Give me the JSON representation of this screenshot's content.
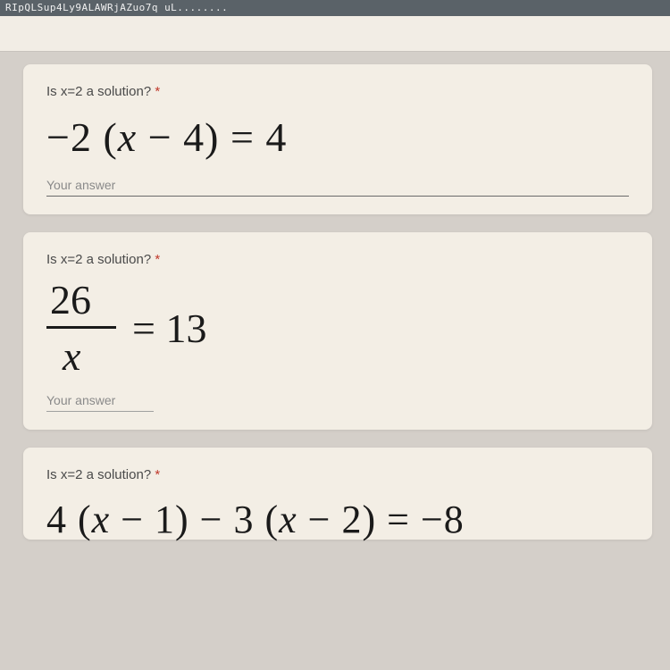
{
  "topbar": {
    "text": "RIpQLSup4Ly9ALAWRjAZuo7q uL........"
  },
  "cards": [
    {
      "question": "Is x=2 a solution?",
      "required_mark": "*",
      "equation_html": "−2 (x − 4) = 4",
      "answer_placeholder": "Your answer",
      "line_style": "full"
    },
    {
      "question": "Is x=2 a solution?",
      "required_mark": "*",
      "fraction": {
        "num": "26",
        "den": "x",
        "rhs": "= 13"
      },
      "answer_placeholder": "Your answer",
      "line_style": "short"
    },
    {
      "question": "Is x=2 a solution?",
      "required_mark": "*",
      "equation_html": "4 (x − 1) − 3 (x − 2) = −8"
    }
  ],
  "colors": {
    "page_bg": "#d4cfc9",
    "card_bg": "#f3eee5",
    "topbar_bg": "#5a6268",
    "text_main": "#1a1a1a",
    "text_muted": "#8a8a8a",
    "required": "#c0392b"
  }
}
